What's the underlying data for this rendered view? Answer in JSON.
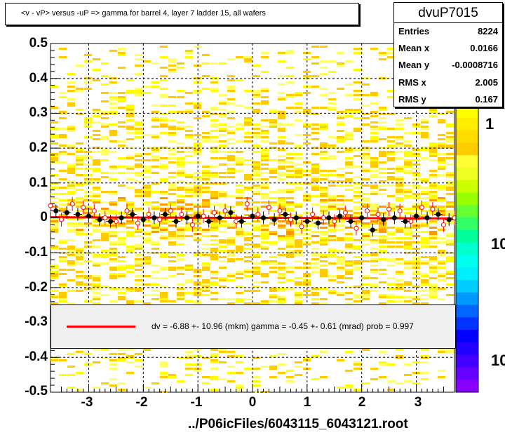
{
  "chart_data": {
    "type": "scatter",
    "title": "<v - vP>       versus  -uP =>  gamma for barrel 4, layer 7 ladder 15, all wafers",
    "xlabel": "../P06icFiles/6043115_6043121.root",
    "xlim": [
      -3.7,
      3.7
    ],
    "ylim": [
      -0.5,
      0.5
    ],
    "x_ticks": [
      "-3",
      "-2",
      "-1",
      "0",
      "1",
      "2",
      "3"
    ],
    "y_ticks": [
      "0.5",
      "0.4",
      "0.3",
      "0.2",
      "0.1",
      "0",
      "-0.1",
      "-0.2",
      "-0.3",
      "-0.4",
      "-0.5"
    ],
    "z_ticks": [
      "1",
      "10",
      "10"
    ],
    "grid": true,
    "stats": {
      "name": "dvuP7015",
      "rows": [
        {
          "label": "Entries",
          "value": "8224"
        },
        {
          "label": "Mean x",
          "value": "0.0166"
        },
        {
          "label": "Mean y",
          "value": "-0.0008716"
        },
        {
          "label": "RMS x",
          "value": "2.005"
        },
        {
          "label": "RMS y",
          "value": "0.167"
        }
      ]
    },
    "fit_legend": "dv =   -6.88 +- 10.96 (mkm) gamma =   -0.45 +-  0.61 (mrad) prob = 0.997",
    "fit_line": {
      "x": [
        -3.7,
        3.7
      ],
      "y": [
        0.0017,
        -0.0017
      ]
    },
    "profile_black": {
      "x": [
        -3.6,
        -3.4,
        -3.2,
        -3.0,
        -2.8,
        -2.6,
        -2.4,
        -2.2,
        -2.0,
        -1.8,
        -1.6,
        -1.4,
        -1.2,
        -1.0,
        -0.8,
        -0.6,
        -0.4,
        -0.2,
        0.0,
        0.2,
        0.4,
        0.6,
        0.8,
        1.0,
        1.2,
        1.4,
        1.6,
        1.8,
        2.0,
        2.2,
        2.4,
        2.6,
        2.8,
        3.0,
        3.2,
        3.4,
        3.6
      ],
      "y": [
        0.02,
        0.015,
        0.01,
        0.005,
        -0.005,
        -0.01,
        0.0,
        0.01,
        -0.005,
        0.0,
        0.01,
        -0.01,
        0.0,
        0.005,
        -0.01,
        0.0,
        0.015,
        -0.01,
        0.005,
        0.0,
        -0.005,
        0.01,
        0.0,
        -0.01,
        -0.015,
        0.0,
        0.005,
        -0.01,
        0.0,
        -0.035,
        -0.005,
        0.0,
        -0.01,
        0.005,
        0.0,
        0.01,
        -0.005
      ]
    },
    "profile_red": {
      "x": [
        -3.7,
        -3.5,
        -3.3,
        -3.1,
        -2.9,
        -2.7,
        -2.5,
        -2.3,
        -2.1,
        -1.9,
        -1.7,
        -1.5,
        -1.3,
        -1.1,
        -0.9,
        -0.7,
        -0.5,
        -0.3,
        -0.1,
        0.1,
        0.3,
        0.5,
        0.7,
        0.9,
        1.1,
        1.3,
        1.5,
        1.7,
        1.9,
        2.1,
        2.3,
        2.5,
        2.7,
        2.9,
        3.1,
        3.3,
        3.5,
        3.7
      ],
      "y": [
        0.035,
        -0.005,
        0.04,
        0.03,
        0.02,
        0.0,
        -0.01,
        0.02,
        -0.015,
        0.01,
        -0.005,
        0.02,
        0.01,
        -0.02,
        0.005,
        0.015,
        0.02,
        -0.01,
        0.04,
        0.01,
        0.03,
        0.02,
        -0.005,
        -0.025,
        0.01,
        0.0,
        -0.01,
        0.015,
        -0.03,
        0.02,
        0.01,
        0.025,
        0.02,
        -0.01,
        0.03,
        0.025,
        -0.02,
        0.0
      ]
    }
  }
}
